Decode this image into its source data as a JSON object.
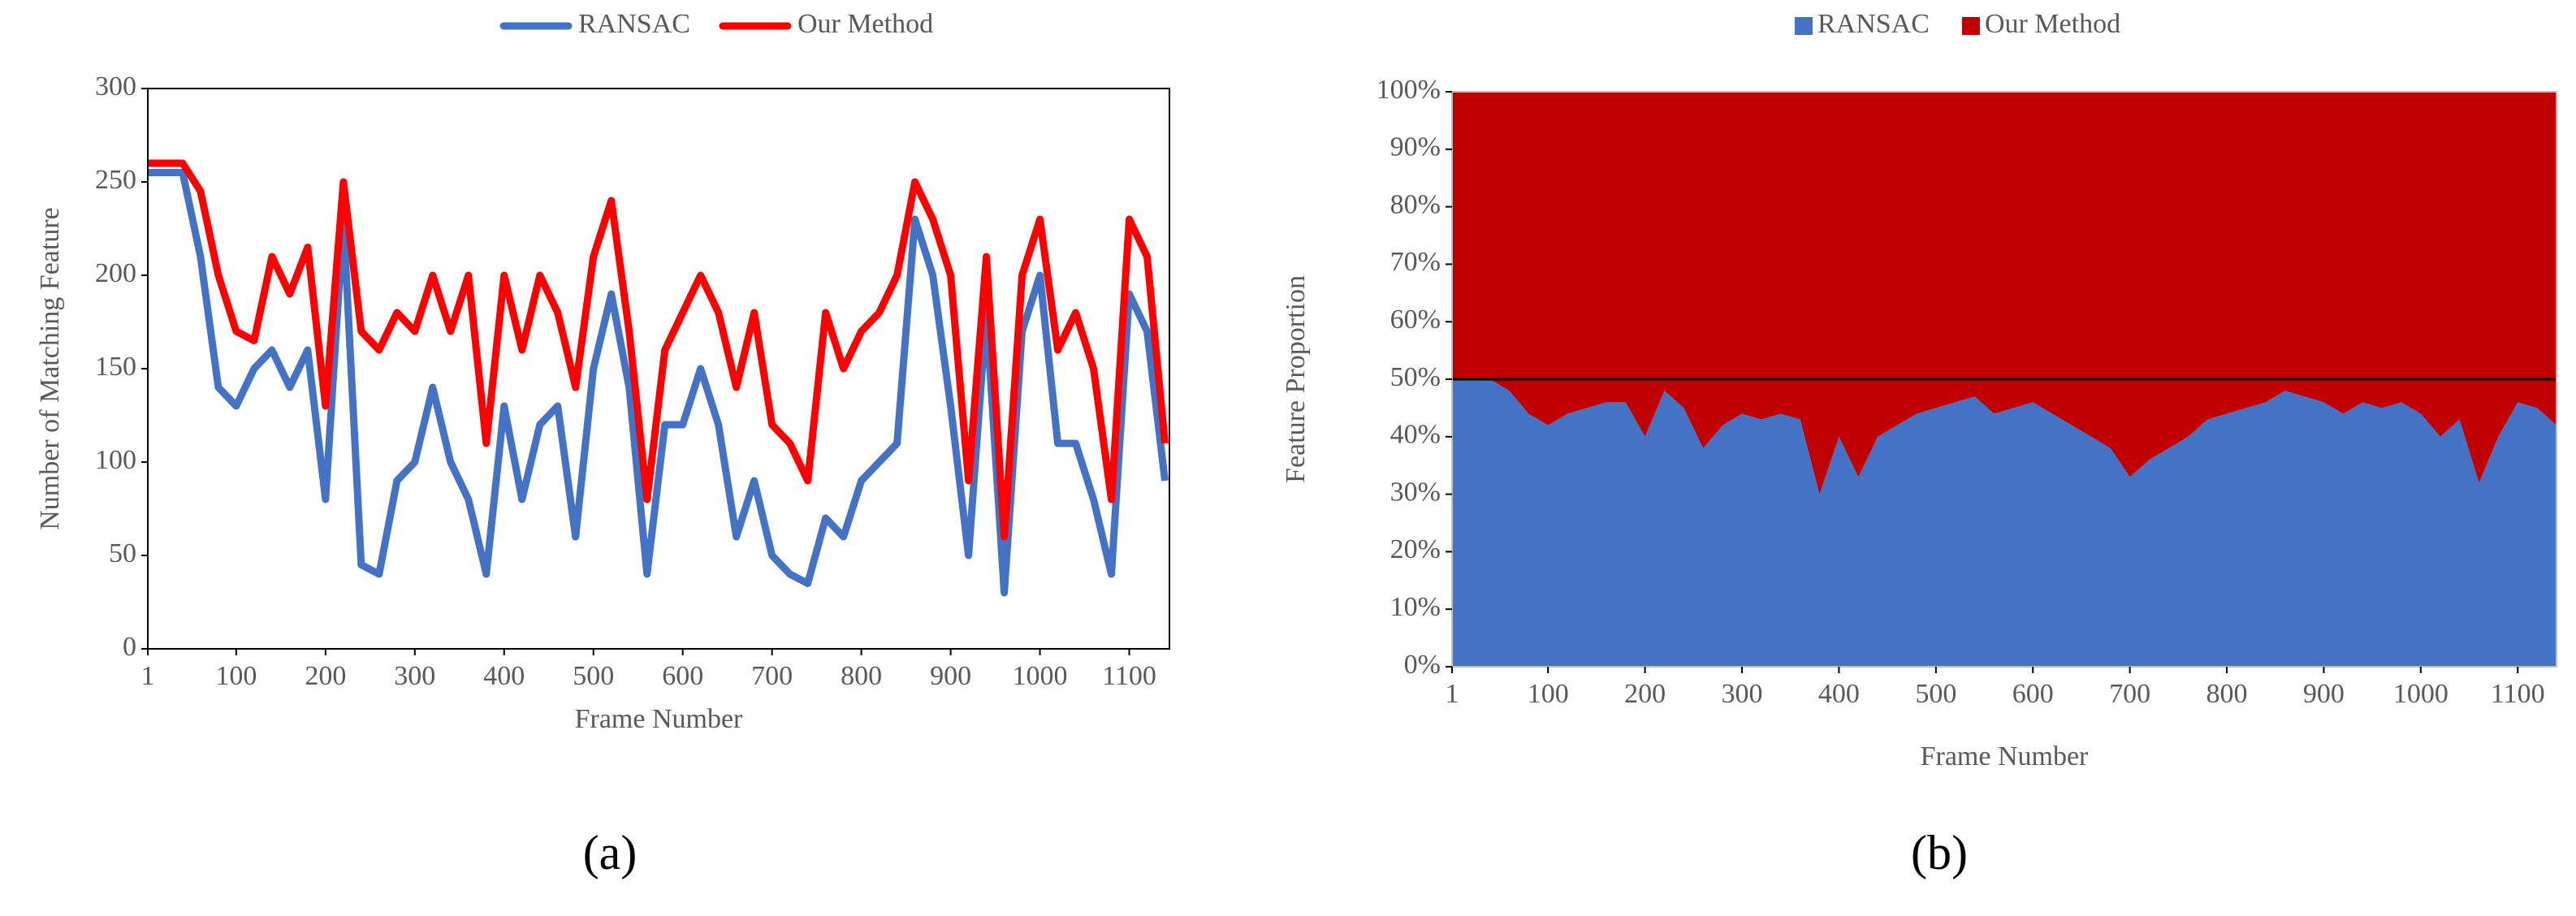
{
  "chart_data": [
    {
      "type": "line",
      "caption": "(a)",
      "x_label": "Frame Number",
      "y_label": "Number of Matching Feature",
      "x": [
        1,
        20,
        40,
        60,
        80,
        100,
        120,
        140,
        160,
        180,
        200,
        220,
        240,
        260,
        280,
        300,
        320,
        340,
        360,
        380,
        400,
        420,
        440,
        460,
        480,
        500,
        520,
        540,
        560,
        580,
        600,
        620,
        640,
        660,
        680,
        700,
        720,
        740,
        760,
        780,
        800,
        820,
        840,
        860,
        880,
        900,
        920,
        940,
        960,
        980,
        1000,
        1020,
        1040,
        1060,
        1080,
        1100,
        1120,
        1140
      ],
      "series": [
        {
          "name": "RANSAC",
          "color": "#4472c4",
          "values": [
            255,
            255,
            255,
            210,
            140,
            130,
            150,
            160,
            140,
            160,
            80,
            230,
            45,
            40,
            90,
            100,
            140,
            100,
            80,
            40,
            130,
            80,
            120,
            130,
            60,
            150,
            190,
            140,
            40,
            120,
            120,
            150,
            120,
            60,
            90,
            50,
            40,
            35,
            70,
            60,
            90,
            100,
            110,
            230,
            200,
            130,
            50,
            180,
            30,
            170,
            200,
            110,
            110,
            80,
            40,
            190,
            170,
            90
          ]
        },
        {
          "name": "Our Method",
          "color": "#ff0000",
          "values": [
            260,
            260,
            260,
            245,
            200,
            170,
            165,
            210,
            190,
            215,
            130,
            250,
            170,
            160,
            180,
            170,
            200,
            170,
            200,
            110,
            200,
            160,
            200,
            180,
            140,
            210,
            240,
            170,
            80,
            160,
            180,
            200,
            180,
            140,
            180,
            120,
            110,
            90,
            180,
            150,
            170,
            180,
            200,
            250,
            230,
            200,
            90,
            210,
            60,
            200,
            230,
            160,
            180,
            150,
            80,
            230,
            210,
            110
          ]
        }
      ],
      "xlim": [
        1,
        1145
      ],
      "ylim": [
        0,
        300
      ],
      "xticks": [
        1,
        100,
        200,
        300,
        400,
        500,
        600,
        700,
        800,
        900,
        1000,
        1100
      ],
      "yticks": [
        0,
        50,
        100,
        150,
        200,
        250,
        300
      ],
      "grid": false
    },
    {
      "type": "area",
      "caption": "(b)",
      "x_label": "Frame Number",
      "y_label": "Feature Proportion",
      "x": [
        1,
        20,
        40,
        60,
        80,
        100,
        120,
        140,
        160,
        180,
        200,
        220,
        240,
        260,
        280,
        300,
        320,
        340,
        360,
        380,
        400,
        420,
        440,
        460,
        480,
        500,
        520,
        540,
        560,
        580,
        600,
        620,
        640,
        660,
        680,
        700,
        720,
        740,
        760,
        780,
        800,
        820,
        840,
        860,
        880,
        900,
        920,
        940,
        960,
        980,
        1000,
        1020,
        1040,
        1060,
        1080,
        1100,
        1120,
        1140
      ],
      "series": [
        {
          "name": "RANSAC",
          "color": "#4472c4",
          "values": [
            50,
            50,
            50,
            48,
            44,
            42,
            44,
            45,
            46,
            46,
            40,
            48,
            45,
            38,
            42,
            44,
            43,
            44,
            43,
            30,
            40,
            33,
            40,
            42,
            44,
            45,
            46,
            47,
            44,
            45,
            46,
            44,
            42,
            40,
            38,
            33,
            36,
            38,
            40,
            43,
            44,
            45,
            46,
            48,
            47,
            46,
            44,
            46,
            45,
            46,
            44,
            40,
            43,
            32,
            40,
            46,
            45,
            42
          ]
        },
        {
          "name": "Our Method",
          "color": "#c00000",
          "values": [
            50,
            50,
            50,
            52,
            56,
            58,
            56,
            55,
            54,
            54,
            60,
            52,
            55,
            62,
            58,
            56,
            57,
            56,
            57,
            70,
            60,
            67,
            60,
            58,
            56,
            55,
            54,
            53,
            56,
            55,
            54,
            56,
            58,
            60,
            62,
            67,
            64,
            62,
            60,
            57,
            56,
            55,
            54,
            52,
            53,
            54,
            56,
            54,
            55,
            54,
            56,
            60,
            57,
            68,
            60,
            54,
            55,
            58
          ]
        }
      ],
      "hline": 50,
      "xlim": [
        1,
        1140
      ],
      "ylim": [
        0,
        100
      ],
      "xticks": [
        1,
        100,
        200,
        300,
        400,
        500,
        600,
        700,
        800,
        900,
        1000,
        1100
      ],
      "yticks": [
        {
          "value": 0,
          "label": "0%"
        },
        {
          "value": 10,
          "label": "10%"
        },
        {
          "value": 20,
          "label": "20%"
        },
        {
          "value": 30,
          "label": "30%"
        },
        {
          "value": 40,
          "label": "40%"
        },
        {
          "value": 50,
          "label": "50%"
        },
        {
          "value": 60,
          "label": "60%"
        },
        {
          "value": 70,
          "label": "70%"
        },
        {
          "value": 80,
          "label": "80%"
        },
        {
          "value": 90,
          "label": "90%"
        },
        {
          "value": 100,
          "label": "100%"
        }
      ],
      "grid": false
    }
  ]
}
